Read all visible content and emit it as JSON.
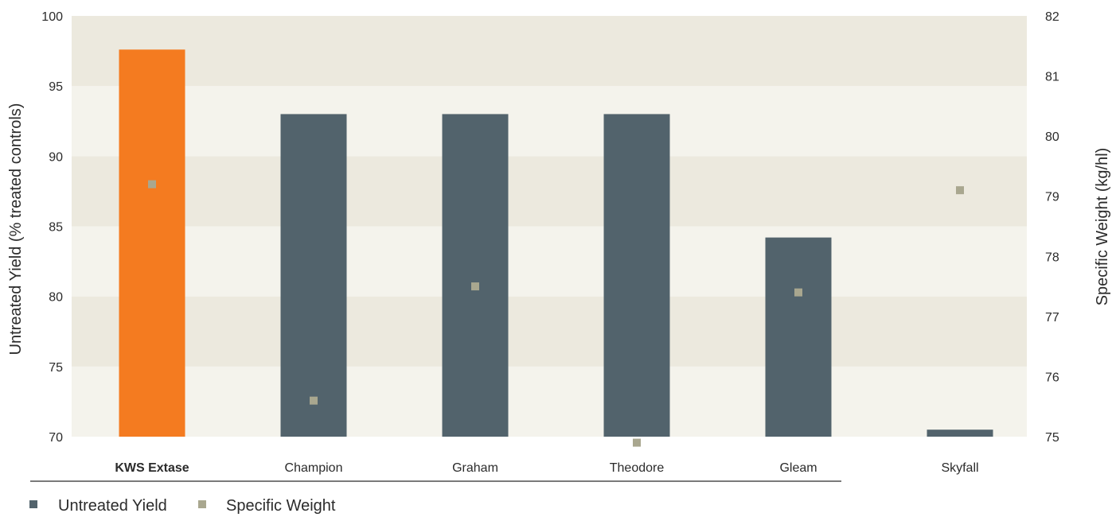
{
  "chart_data": {
    "type": "bar",
    "categories": [
      "KWS Extase",
      "Champion",
      "Graham",
      "Theodore",
      "Gleam",
      "Skyfall"
    ],
    "highlight_category": "KWS Extase",
    "series": [
      {
        "name": "Untreated Yield",
        "kind": "bar",
        "axis": "left",
        "values": [
          97.6,
          93.0,
          93.0,
          93.0,
          84.2,
          70.5
        ]
      },
      {
        "name": "Specific Weight",
        "kind": "marker",
        "axis": "right",
        "values": [
          79.2,
          75.6,
          77.5,
          74.9,
          77.4,
          79.1
        ]
      }
    ],
    "ylabel": "Untreated Yield (% treated controls)",
    "ylabel_right": "Specific Weight (kg/hl)",
    "ylim": [
      70,
      100
    ],
    "yticks": [
      "70",
      "75",
      "80",
      "85",
      "90",
      "95",
      "100"
    ],
    "ylim_right": [
      75,
      82
    ],
    "yticks_right": [
      "75",
      "76",
      "77",
      "78",
      "79",
      "80",
      "81",
      "82"
    ],
    "legend_position": "bottom-left",
    "background": "alternating horizontal bands",
    "colors": {
      "bar": "#52636c",
      "highlight_bar": "#f47b20",
      "marker": "#a9a78f",
      "band_dark": "#ece9de",
      "band_light": "#f4f3ec",
      "highlight_label": "#f47b20",
      "text": "#2b2b2b"
    }
  }
}
